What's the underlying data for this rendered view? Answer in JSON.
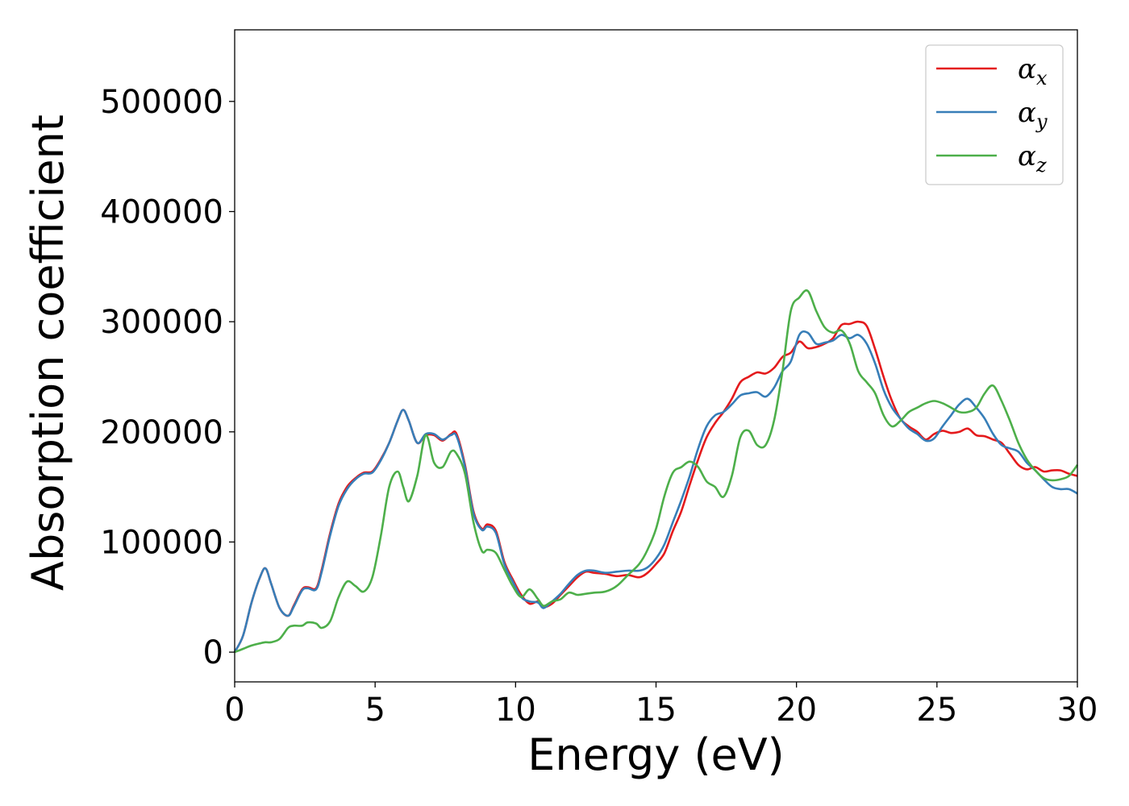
{
  "chart_data": {
    "type": "line",
    "title": "",
    "xlabel": "Energy (eV)",
    "ylabel": "Absorption coefficient",
    "xlim": [
      0,
      30
    ],
    "ylim": [
      -27000,
      565000
    ],
    "xticks": [
      0,
      5,
      10,
      15,
      20,
      25,
      30
    ],
    "yticks": [
      0,
      100000,
      200000,
      300000,
      400000,
      500000
    ],
    "grid": false,
    "legend_position": "top-right",
    "series": [
      {
        "name": "α",
        "subscript": "x",
        "color": "#e41a1c",
        "x": [
          0,
          0.3,
          0.6,
          0.9,
          1.1,
          1.3,
          1.6,
          1.9,
          2.1,
          2.4,
          2.6,
          2.9,
          3.1,
          3.4,
          3.7,
          4.0,
          4.3,
          4.6,
          4.9,
          5.2,
          5.5,
          5.8,
          6.0,
          6.2,
          6.5,
          6.8,
          7.1,
          7.4,
          7.7,
          7.9,
          8.2,
          8.5,
          8.8,
          9.0,
          9.3,
          9.6,
          9.9,
          10.2,
          10.5,
          10.8,
          11.0,
          11.3,
          11.6,
          11.9,
          12.2,
          12.5,
          12.8,
          13.2,
          13.6,
          14.0,
          14.4,
          14.7,
          15.0,
          15.3,
          15.6,
          15.9,
          16.2,
          16.5,
          16.8,
          17.1,
          17.4,
          17.7,
          18.0,
          18.3,
          18.6,
          18.9,
          19.2,
          19.5,
          19.8,
          20.1,
          20.4,
          20.7,
          21.0,
          21.3,
          21.6,
          21.9,
          22.2,
          22.5,
          22.8,
          23.1,
          23.4,
          23.7,
          24.0,
          24.3,
          24.6,
          24.9,
          25.2,
          25.5,
          25.8,
          26.1,
          26.4,
          26.7,
          27.0,
          27.3,
          27.6,
          27.9,
          28.2,
          28.5,
          28.8,
          29.1,
          29.4,
          29.7,
          30.0
        ],
        "y": [
          0,
          15000,
          45000,
          68000,
          76000,
          62000,
          40000,
          33000,
          42000,
          57000,
          59000,
          58000,
          75000,
          108000,
          135000,
          150000,
          158000,
          163000,
          164000,
          175000,
          190000,
          210000,
          220000,
          210000,
          190000,
          197000,
          197000,
          192000,
          198000,
          198000,
          170000,
          128000,
          112000,
          116000,
          110000,
          82000,
          66000,
          52000,
          44000,
          46000,
          41000,
          44000,
          52000,
          60000,
          68000,
          73000,
          72000,
          71000,
          69000,
          70000,
          68000,
          72000,
          80000,
          90000,
          110000,
          128000,
          152000,
          175000,
          195000,
          208000,
          218000,
          230000,
          245000,
          250000,
          254000,
          253000,
          258000,
          268000,
          272000,
          282000,
          276000,
          277000,
          280000,
          285000,
          297000,
          298000,
          300000,
          296000,
          275000,
          250000,
          228000,
          212000,
          205000,
          200000,
          193000,
          198000,
          201000,
          199000,
          200000,
          203000,
          197000,
          196000,
          193000,
          190000,
          180000,
          170000,
          166000,
          168000,
          164000,
          165000,
          165000,
          162000,
          160000
        ]
      },
      {
        "name": "α",
        "subscript": "y",
        "color": "#377eb8",
        "x": [
          0,
          0.3,
          0.6,
          0.9,
          1.1,
          1.3,
          1.6,
          1.9,
          2.1,
          2.4,
          2.6,
          2.9,
          3.1,
          3.4,
          3.7,
          4.0,
          4.3,
          4.6,
          4.9,
          5.2,
          5.5,
          5.8,
          6.0,
          6.2,
          6.5,
          6.8,
          7.1,
          7.4,
          7.7,
          7.9,
          8.2,
          8.5,
          8.8,
          9.0,
          9.3,
          9.6,
          9.9,
          10.2,
          10.5,
          10.8,
          11.0,
          11.3,
          11.6,
          11.9,
          12.2,
          12.5,
          12.8,
          13.2,
          13.6,
          14.0,
          14.4,
          14.7,
          15.0,
          15.3,
          15.6,
          15.9,
          16.2,
          16.5,
          16.8,
          17.1,
          17.4,
          17.7,
          18.0,
          18.3,
          18.6,
          18.9,
          19.2,
          19.5,
          19.8,
          20.1,
          20.4,
          20.7,
          21.0,
          21.3,
          21.6,
          21.9,
          22.2,
          22.5,
          22.8,
          23.1,
          23.4,
          23.7,
          24.0,
          24.3,
          24.6,
          24.9,
          25.2,
          25.5,
          25.8,
          26.1,
          26.4,
          26.7,
          27.0,
          27.3,
          27.6,
          27.9,
          28.2,
          28.5,
          28.8,
          29.1,
          29.4,
          29.7,
          30.0
        ],
        "y": [
          0,
          15000,
          45000,
          68000,
          76000,
          62000,
          40000,
          33000,
          41000,
          56000,
          58000,
          57000,
          73000,
          106000,
          133000,
          148000,
          157000,
          162000,
          163000,
          174000,
          190000,
          210000,
          220000,
          210000,
          190000,
          198000,
          198000,
          193000,
          197000,
          196000,
          168000,
          126000,
          111000,
          114000,
          108000,
          80000,
          64000,
          50000,
          46000,
          45000,
          40000,
          46000,
          53000,
          62000,
          70000,
          74000,
          74000,
          72000,
          73000,
          74000,
          74000,
          77000,
          85000,
          98000,
          118000,
          138000,
          160000,
          185000,
          205000,
          215000,
          218000,
          225000,
          233000,
          235000,
          236000,
          232000,
          240000,
          255000,
          264000,
          288000,
          290000,
          280000,
          281000,
          283000,
          288000,
          285000,
          288000,
          280000,
          262000,
          238000,
          222000,
          212000,
          203000,
          198000,
          192000,
          194000,
          205000,
          215000,
          225000,
          230000,
          222000,
          212000,
          198000,
          188000,
          185000,
          182000,
          172000,
          165000,
          157000,
          150000,
          148000,
          148000,
          144000
        ]
      },
      {
        "name": "α",
        "subscript": "z",
        "color": "#4daf4a",
        "x": [
          0,
          0.3,
          0.6,
          0.9,
          1.1,
          1.3,
          1.6,
          1.9,
          2.1,
          2.4,
          2.6,
          2.9,
          3.1,
          3.4,
          3.7,
          4.0,
          4.3,
          4.6,
          4.9,
          5.2,
          5.5,
          5.8,
          6.0,
          6.2,
          6.5,
          6.8,
          7.1,
          7.4,
          7.7,
          7.9,
          8.2,
          8.5,
          8.8,
          9.0,
          9.3,
          9.6,
          9.9,
          10.2,
          10.5,
          10.8,
          11.0,
          11.3,
          11.6,
          11.9,
          12.2,
          12.5,
          12.8,
          13.2,
          13.6,
          14.0,
          14.4,
          14.7,
          15.0,
          15.3,
          15.6,
          15.9,
          16.2,
          16.5,
          16.8,
          17.1,
          17.4,
          17.7,
          18.0,
          18.3,
          18.6,
          18.9,
          19.2,
          19.5,
          19.8,
          20.1,
          20.4,
          20.7,
          21.0,
          21.3,
          21.6,
          21.9,
          22.2,
          22.5,
          22.8,
          23.1,
          23.4,
          23.7,
          24.0,
          24.3,
          24.6,
          24.9,
          25.2,
          25.5,
          25.8,
          26.1,
          26.4,
          26.7,
          27.0,
          27.3,
          27.6,
          27.9,
          28.2,
          28.5,
          28.8,
          29.1,
          29.4,
          29.7,
          30.0
        ],
        "y": [
          0,
          3000,
          6000,
          8000,
          9000,
          9000,
          12000,
          22000,
          24000,
          24000,
          27000,
          26000,
          22000,
          28000,
          50000,
          64000,
          60000,
          55000,
          68000,
          105000,
          150000,
          164000,
          150000,
          137000,
          160000,
          197000,
          172000,
          168000,
          182000,
          180000,
          162000,
          118000,
          92000,
          93000,
          90000,
          75000,
          60000,
          50000,
          57000,
          48000,
          42000,
          46000,
          48000,
          54000,
          52000,
          53000,
          54000,
          55000,
          60000,
          70000,
          80000,
          93000,
          112000,
          142000,
          163000,
          168000,
          173000,
          168000,
          155000,
          150000,
          141000,
          160000,
          195000,
          201000,
          188000,
          188000,
          210000,
          255000,
          310000,
          322000,
          328000,
          310000,
          295000,
          290000,
          292000,
          280000,
          255000,
          245000,
          235000,
          215000,
          205000,
          210000,
          218000,
          222000,
          226000,
          228000,
          226000,
          222000,
          218000,
          218000,
          222000,
          235000,
          242000,
          228000,
          210000,
          190000,
          175000,
          165000,
          158000,
          156000,
          157000,
          160000,
          170000
        ]
      }
    ]
  }
}
